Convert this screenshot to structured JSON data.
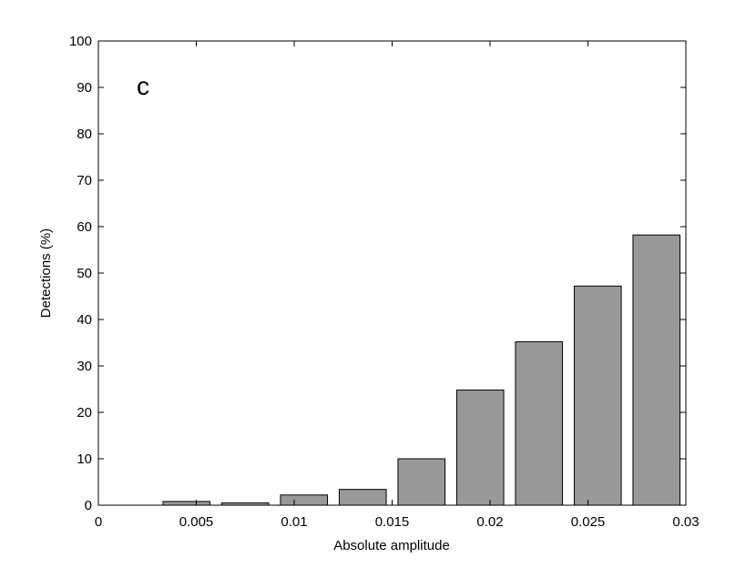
{
  "chart_data": {
    "type": "bar",
    "annotation": "c",
    "xlabel": "Absolute amplitude",
    "ylabel": "Detections (%)",
    "x": [
      0.0045,
      0.0075,
      0.0105,
      0.0135,
      0.0165,
      0.0195,
      0.0225,
      0.0255,
      0.0285
    ],
    "values": [
      0.8,
      0.5,
      2.2,
      3.4,
      10,
      24.8,
      35.2,
      47.2,
      58.2
    ],
    "color": "#999999",
    "xlim": [
      0,
      0.03
    ],
    "xticks": [
      0,
      0.005,
      0.01,
      0.015,
      0.02,
      0.025,
      0.03
    ],
    "ylim": [
      0,
      100
    ],
    "yticks": [
      0,
      10,
      20,
      30,
      40,
      50,
      60,
      70,
      80,
      90,
      100
    ],
    "grid": false
  }
}
